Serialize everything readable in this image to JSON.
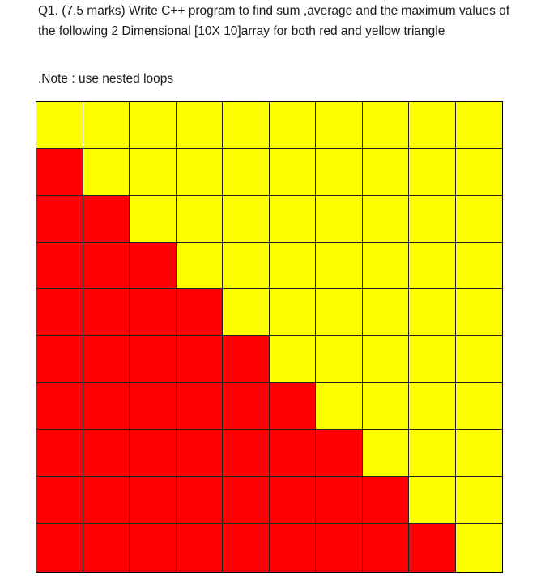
{
  "question": {
    "text": "Q1. (7.5 marks) Write C++ program to  find sum ,average and the maximum values of the following 2 Dimensional [10X 10]array for both red and yellow triangle"
  },
  "note": {
    "text": ".Note : use nested loops"
  },
  "grid": {
    "rows": 10,
    "cols": 10,
    "red_color": "#ff0000",
    "yellow_color": "#ffff00",
    "rule": "red below main diagonal, yellow on and above"
  }
}
